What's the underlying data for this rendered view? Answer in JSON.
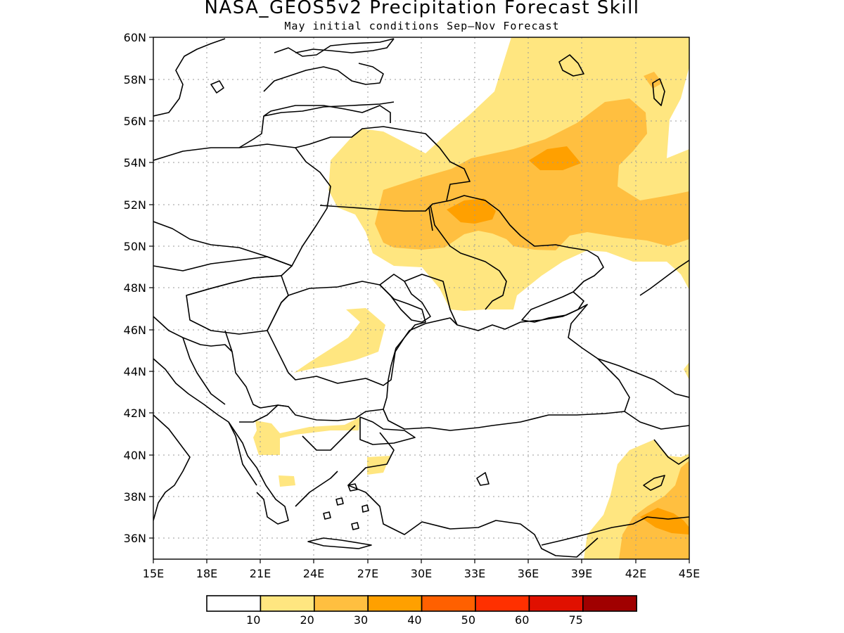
{
  "title": "NASA_GEOS5v2 Precipitation Forecast Skill",
  "subtitle": "May initial conditions  Sep–Nov Forecast",
  "map": {
    "lon_range": [
      15,
      45
    ],
    "lat_range": [
      35,
      60
    ],
    "lon_ticks": [
      "15E",
      "18E",
      "21E",
      "24E",
      "27E",
      "30E",
      "33E",
      "36E",
      "39E",
      "42E",
      "45E"
    ],
    "lat_ticks": [
      "36N",
      "38N",
      "40N",
      "42N",
      "44N",
      "46N",
      "48N",
      "50N",
      "52N",
      "54N",
      "56N",
      "58N",
      "60N"
    ],
    "gridlines": "dotted"
  },
  "colorbar": {
    "levels": [
      "10",
      "20",
      "30",
      "40",
      "50",
      "60",
      "75"
    ],
    "colors": [
      "#ffffff",
      "#ffe680",
      "#ffbf40",
      "#ffa000",
      "#ff6000",
      "#ff3000",
      "#e01000",
      "#a00000"
    ]
  }
}
